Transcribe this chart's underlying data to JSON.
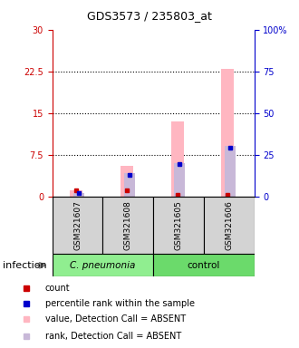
{
  "title": "GDS3573 / 235803_at",
  "samples": [
    "GSM321607",
    "GSM321608",
    "GSM321605",
    "GSM321606"
  ],
  "ylim_left": [
    0,
    30
  ],
  "ylim_right": [
    0,
    100
  ],
  "yticks_left": [
    0,
    7.5,
    15,
    22.5,
    30
  ],
  "yticks_right": [
    0,
    25,
    50,
    75,
    100
  ],
  "yticklabels_left": [
    "0",
    "7.5",
    "15",
    "22.5",
    "30"
  ],
  "yticklabels_right": [
    "0",
    "25",
    "50",
    "75",
    "100%"
  ],
  "value_bars": [
    1.2,
    5.5,
    13.5,
    23.0
  ],
  "rank_bars_pct": [
    2.0,
    14.0,
    20.0,
    30.5
  ],
  "count_values": [
    1.2,
    1.2,
    0.4,
    0.4
  ],
  "percentile_values_pct": [
    2.0,
    13.0,
    19.5,
    29.5
  ],
  "count_color": "#cc0000",
  "percentile_color": "#0000cc",
  "value_bar_color": "#ffb6c1",
  "rank_bar_color": "#c8b8d8",
  "left_axis_color": "#cc0000",
  "right_axis_color": "#0000cc",
  "grid_dotted_at": [
    7.5,
    15.0,
    22.5
  ],
  "legend_items": [
    "count",
    "percentile rank within the sample",
    "value, Detection Call = ABSENT",
    "rank, Detection Call = ABSENT"
  ],
  "legend_colors": [
    "#cc0000",
    "#0000cc",
    "#ffb6c1",
    "#c8b8d8"
  ],
  "group_labels": [
    "C. pneumonia",
    "control"
  ],
  "group_spans": [
    0,
    2
  ],
  "group_color_cp": "#90ee90",
  "group_color_ctrl": "#6bda6b",
  "sample_box_color": "#d3d3d3",
  "infection_label": "infection"
}
